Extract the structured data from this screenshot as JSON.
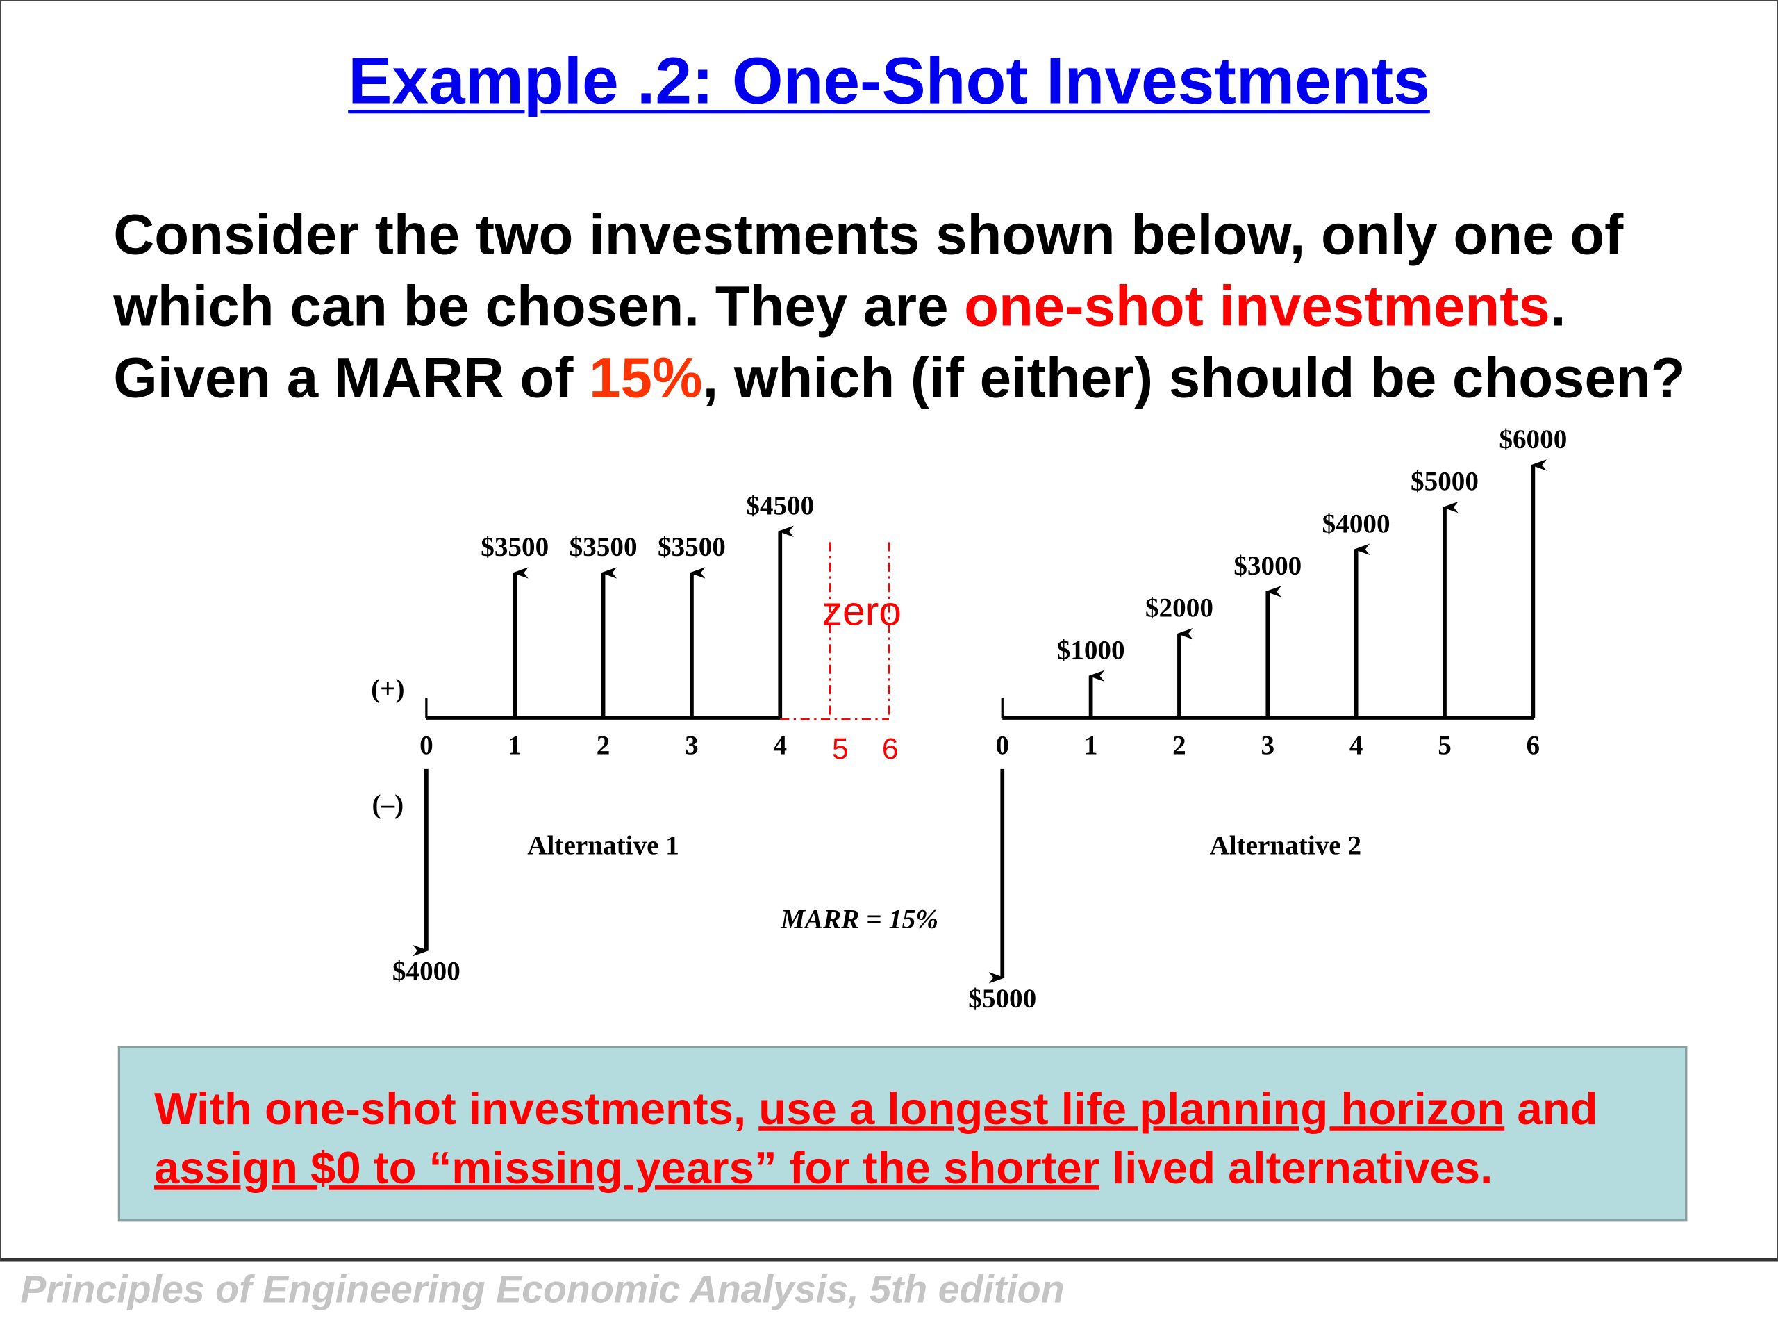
{
  "title": "Example .2: One-Shot Investments",
  "body": {
    "p1": "Consider the two investments shown below, only one of which can be chosen. They are ",
    "highlight1": "one-shot investments",
    "p2": ". Given a MARR of ",
    "highlight2": "15%",
    "p3": ", which (if either) should be chosen?"
  },
  "diagram": {
    "plus_label": "(+)",
    "minus_label": "(–)",
    "marr_label": "MARR = 15%",
    "zero_label": "zero",
    "colors": {
      "ink": "#000000",
      "annotation": "#ff0000"
    },
    "alternatives": [
      {
        "name": "Alternative 1",
        "periods": [
          "0",
          "1",
          "2",
          "3",
          "4"
        ],
        "extra_periods": [
          "5",
          "6"
        ],
        "cash_flows": [
          -4000,
          3500,
          3500,
          3500,
          4500
        ],
        "labels": [
          "$4000",
          "$3500",
          "$3500",
          "$3500",
          "$4500"
        ]
      },
      {
        "name": "Alternative 2",
        "periods": [
          "0",
          "1",
          "2",
          "3",
          "4",
          "5",
          "6"
        ],
        "cash_flows": [
          -5000,
          1000,
          2000,
          3000,
          4000,
          5000,
          6000
        ],
        "labels": [
          "$5000",
          "$1000",
          "$2000",
          "$3000",
          "$4000",
          "$5000",
          "$6000"
        ]
      }
    ]
  },
  "note": {
    "t1": "With one-shot investments, ",
    "u1": "use a longest life planning horizon",
    "t2": " and ",
    "u2": "assign $0 to “missing years” for the shorter",
    "t3": " lived alternatives."
  },
  "footer": {
    "italic": "Principles of Engineering Economic Analysis",
    "rest": ", 5th edition"
  }
}
